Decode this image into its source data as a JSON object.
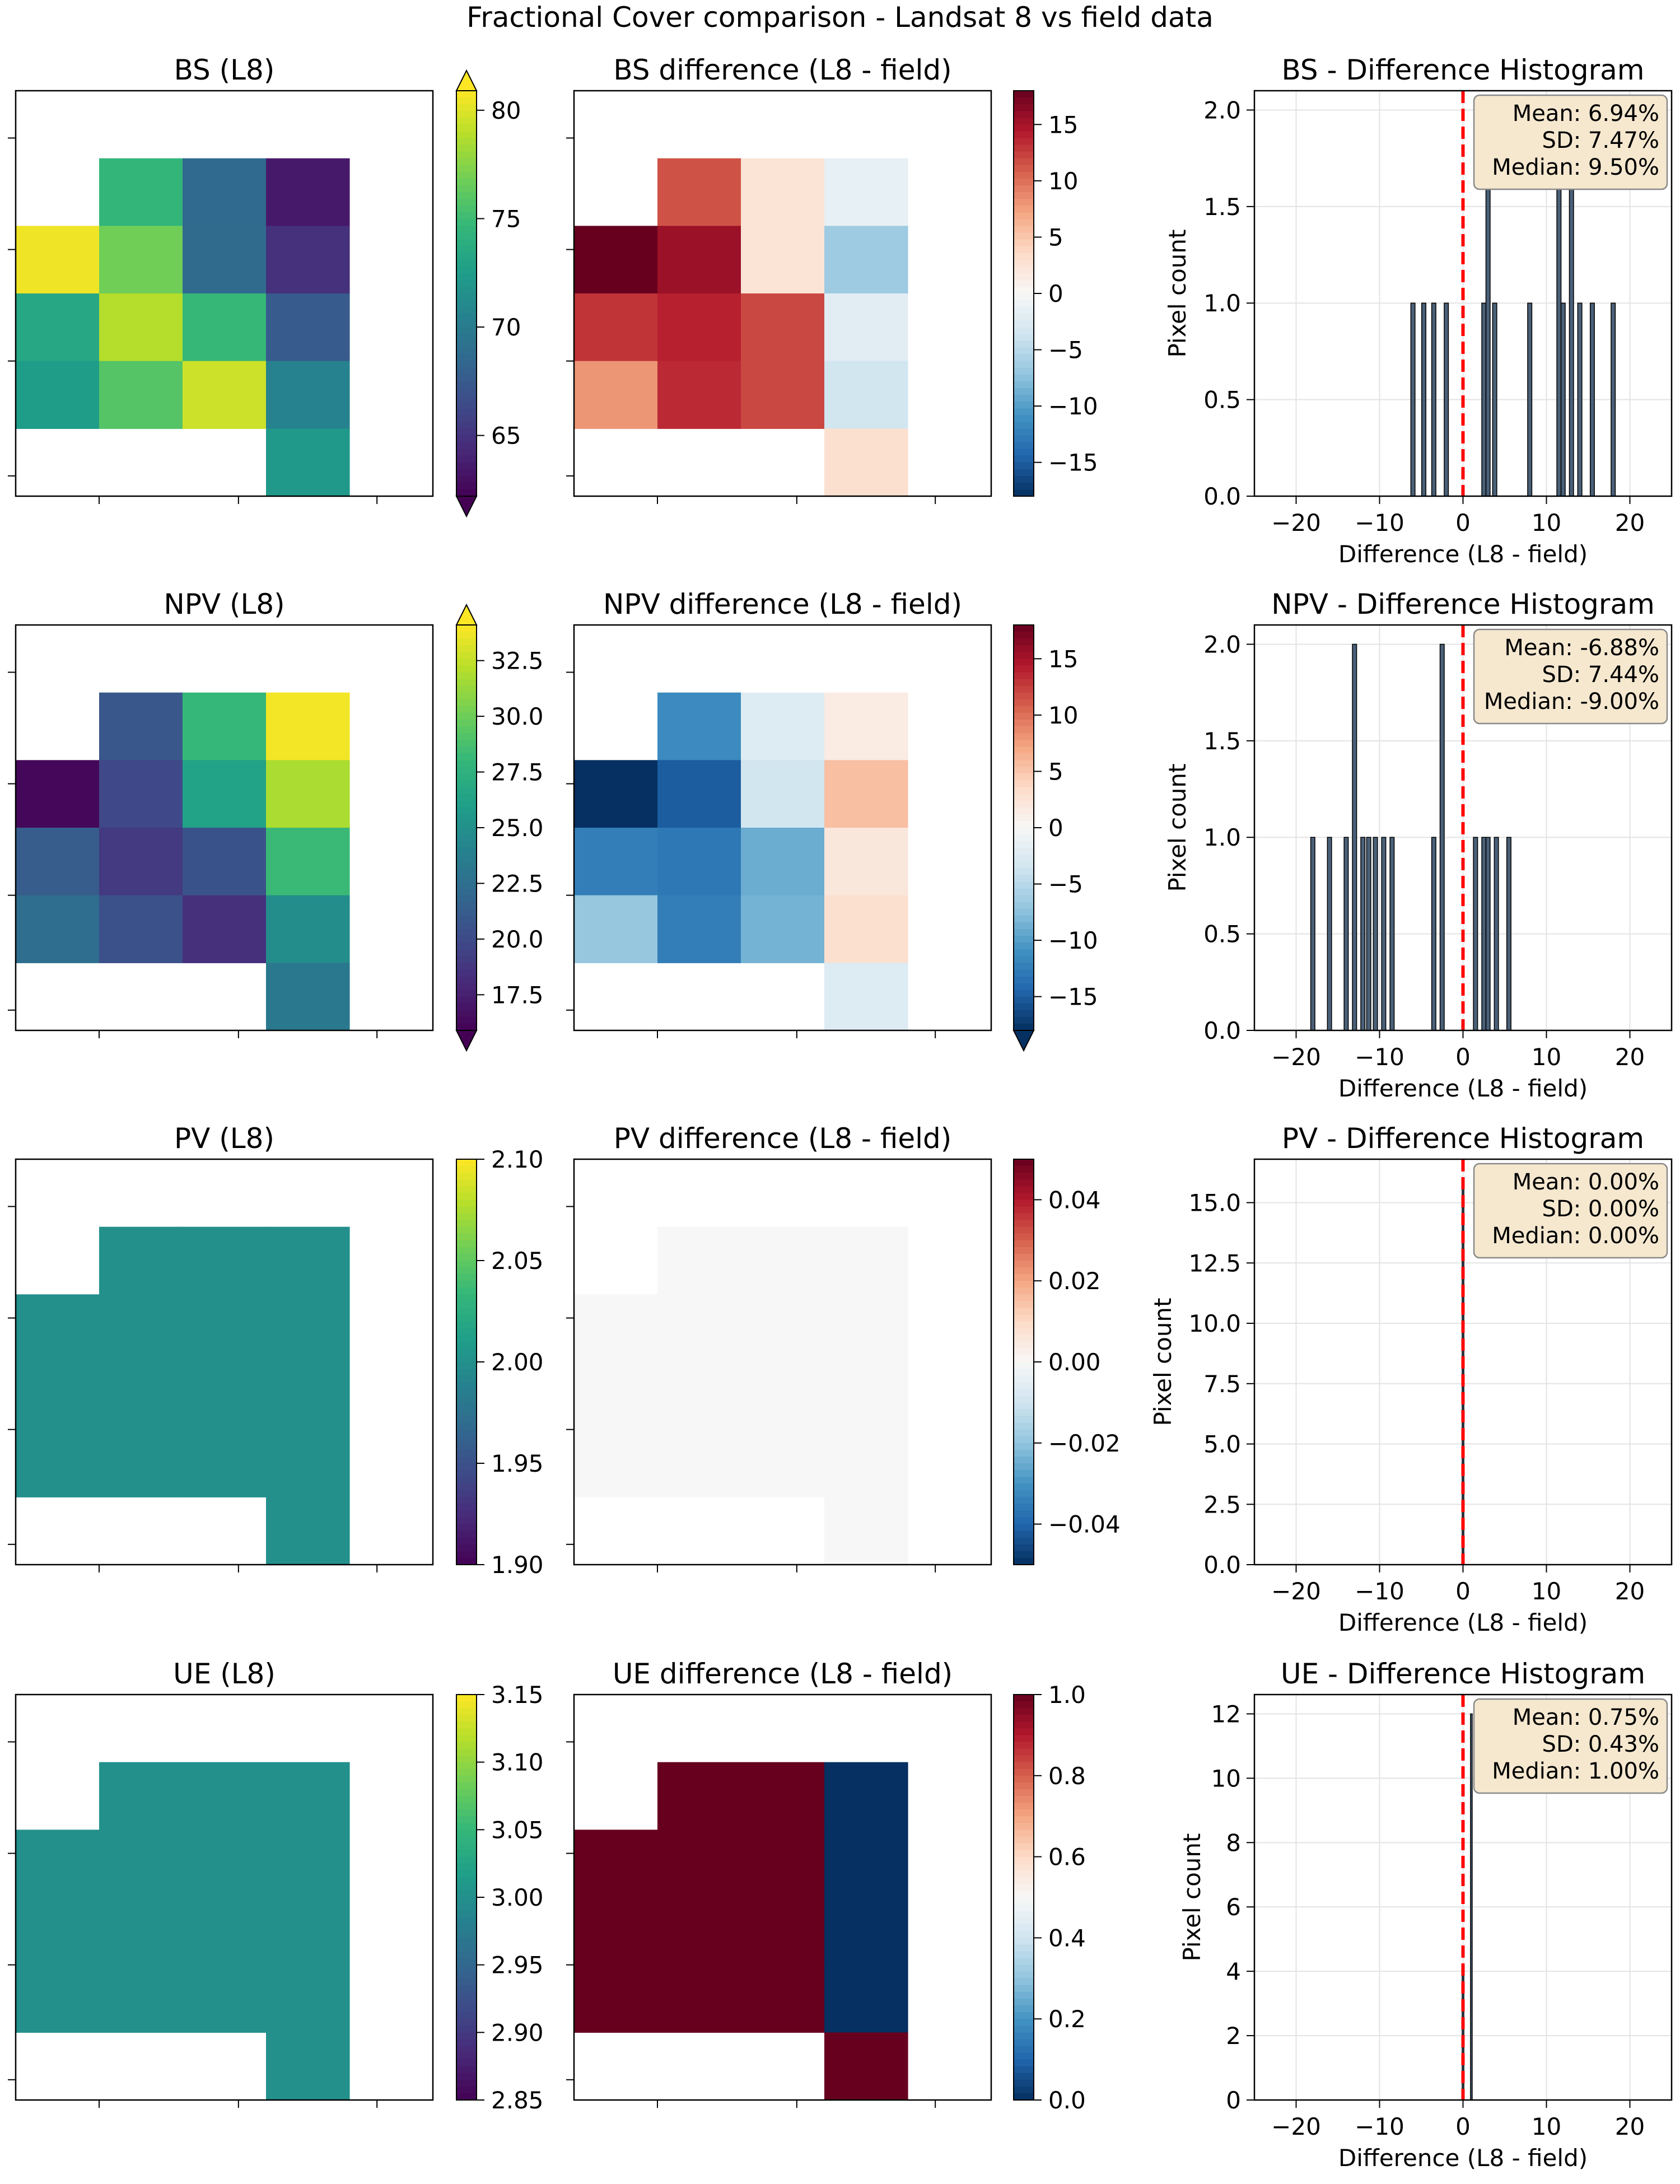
{
  "figure": {
    "title": "Fractional Cover comparison - Landsat 8 vs field data"
  },
  "colors": {
    "hist_bar": "#4a6078",
    "hist_edge": "#000000",
    "mean_line": "#ff0000",
    "stats_box_fill": "#f5e8cf",
    "stats_box_edge": "#8a8a8a",
    "grid": "#e3e3e3"
  },
  "chart_data": [
    {
      "id": "bs-l8",
      "type": "heatmap",
      "title": "BS (L8)",
      "colormap": "viridis",
      "vmin": 62.2,
      "vmax": 80.9,
      "colorbar_extend": "both",
      "colorbar_ticks": [
        "65",
        "70",
        "75",
        "80"
      ],
      "colorbar_tick_values": [
        65,
        70,
        75,
        80
      ],
      "grid_rows": 6,
      "grid_cols": 5,
      "cells": [
        [
          null,
          null,
          null,
          null,
          null
        ],
        [
          null,
          74.5,
          68.6,
          63.5,
          null
        ],
        [
          80.5,
          76.8,
          68.7,
          64.8,
          null
        ],
        [
          73.3,
          78.8,
          74.7,
          67.5,
          null
        ],
        [
          72.5,
          75.8,
          79.5,
          70.5,
          null
        ],
        [
          null,
          null,
          null,
          72.2,
          null
        ]
      ]
    },
    {
      "id": "bs-diff",
      "type": "heatmap",
      "title": "BS difference (L8 - field)",
      "colormap": "RdBu_r",
      "vmin": -18,
      "vmax": 18,
      "colorbar_extend": "none",
      "colorbar_ticks": [
        "15",
        "10",
        "5",
        "0",
        "−5",
        "−10",
        "−15"
      ],
      "colorbar_tick_values": [
        15,
        10,
        5,
        0,
        -5,
        -10,
        -15
      ],
      "grid_rows": 6,
      "grid_cols": 5,
      "cells": [
        [
          null,
          null,
          null,
          null,
          null
        ],
        [
          null,
          11.5,
          2.5,
          -1.5,
          null
        ],
        [
          18.0,
          15.5,
          2.5,
          -6.5,
          null
        ],
        [
          13.0,
          14.0,
          12.0,
          -2.0,
          null
        ],
        [
          8.0,
          13.5,
          12.0,
          -3.5,
          null
        ],
        [
          null,
          null,
          null,
          3.0,
          null
        ]
      ]
    },
    {
      "id": "bs-hist",
      "type": "bar",
      "title": "BS - Difference Histogram",
      "xlabel": "Difference (L8 - field)",
      "ylabel": "Pixel count",
      "xlim": [
        -25,
        25
      ],
      "ylim": [
        0,
        2.1
      ],
      "xticks": [
        "−20",
        "−10",
        "0",
        "10",
        "20"
      ],
      "xtick_values": [
        -20,
        -10,
        0,
        10,
        20
      ],
      "yticks": [
        "0.0",
        "0.5",
        "1.0",
        "1.5",
        "2.0"
      ],
      "ytick_values": [
        0,
        0.5,
        1.0,
        1.5,
        2.0
      ],
      "bar_width": 0.5,
      "bars": [
        {
          "x": -6.0,
          "count": 1
        },
        {
          "x": -4.7,
          "count": 1
        },
        {
          "x": -3.5,
          "count": 1
        },
        {
          "x": -2.0,
          "count": 1
        },
        {
          "x": 2.5,
          "count": 1
        },
        {
          "x": 3.0,
          "count": 2
        },
        {
          "x": 3.8,
          "count": 1
        },
        {
          "x": 8.0,
          "count": 1
        },
        {
          "x": 11.5,
          "count": 2
        },
        {
          "x": 12.0,
          "count": 1
        },
        {
          "x": 13.0,
          "count": 2
        },
        {
          "x": 14.0,
          "count": 1
        },
        {
          "x": 15.5,
          "count": 1
        },
        {
          "x": 18.0,
          "count": 1
        }
      ],
      "ref_line_x": 0,
      "stats": [
        "Mean: 6.94%",
        "SD: 7.47%",
        "Median: 9.50%"
      ]
    },
    {
      "id": "npv-l8",
      "type": "heatmap",
      "title": "NPV (L8)",
      "colormap": "viridis",
      "vmin": 15.9,
      "vmax": 34.1,
      "colorbar_extend": "both",
      "colorbar_ticks": [
        "32.5",
        "30.0",
        "27.5",
        "25.0",
        "22.5",
        "20.0",
        "17.5"
      ],
      "colorbar_tick_values": [
        32.5,
        30.0,
        27.5,
        25.0,
        22.5,
        20.0,
        17.5
      ],
      "grid_rows": 6,
      "grid_cols": 5,
      "cells": [
        [
          null,
          null,
          null,
          null,
          null
        ],
        [
          null,
          20.8,
          28.0,
          33.8,
          null
        ],
        [
          16.2,
          19.8,
          26.3,
          31.8,
          null
        ],
        [
          21.2,
          19.0,
          20.5,
          28.2,
          null
        ],
        [
          22.4,
          20.4,
          18.4,
          24.8,
          null
        ],
        [
          null,
          null,
          null,
          23.2,
          null
        ]
      ]
    },
    {
      "id": "npv-diff",
      "type": "heatmap",
      "title": "NPV difference (L8 - field)",
      "colormap": "RdBu_r",
      "vmin": -18,
      "vmax": 18,
      "colorbar_extend": "min",
      "colorbar_ticks": [
        "15",
        "10",
        "5",
        "0",
        "−5",
        "−10",
        "−15"
      ],
      "colorbar_tick_values": [
        15,
        10,
        5,
        0,
        -5,
        -10,
        -15
      ],
      "grid_rows": 6,
      "grid_cols": 5,
      "cells": [
        [
          null,
          null,
          null,
          null,
          null
        ],
        [
          null,
          -11.5,
          -2.5,
          1.5,
          null
        ],
        [
          -18.0,
          -15.0,
          -3.5,
          5.5,
          null
        ],
        [
          -12.5,
          -13.0,
          -9.0,
          2.0,
          null
        ],
        [
          -7.0,
          -12.5,
          -8.5,
          3.0,
          null
        ],
        [
          null,
          null,
          null,
          -2.5,
          null
        ]
      ]
    },
    {
      "id": "npv-hist",
      "type": "bar",
      "title": "NPV - Difference Histogram",
      "xlabel": "Difference (L8 - field)",
      "ylabel": "Pixel count",
      "xlim": [
        -25,
        25
      ],
      "ylim": [
        0,
        2.1
      ],
      "xticks": [
        "−20",
        "−10",
        "0",
        "10",
        "20"
      ],
      "xtick_values": [
        -20,
        -10,
        0,
        10,
        20
      ],
      "yticks": [
        "0.0",
        "0.5",
        "1.0",
        "1.5",
        "2.0"
      ],
      "ytick_values": [
        0,
        0.5,
        1.0,
        1.5,
        2.0
      ],
      "bar_width": 0.5,
      "bars": [
        {
          "x": -18.0,
          "count": 1
        },
        {
          "x": -16.0,
          "count": 1
        },
        {
          "x": -14.0,
          "count": 1
        },
        {
          "x": -13.0,
          "count": 2
        },
        {
          "x": -12.0,
          "count": 1
        },
        {
          "x": -11.3,
          "count": 1
        },
        {
          "x": -10.5,
          "count": 1
        },
        {
          "x": -9.5,
          "count": 1
        },
        {
          "x": -8.5,
          "count": 1
        },
        {
          "x": -3.5,
          "count": 1
        },
        {
          "x": -2.5,
          "count": 2
        },
        {
          "x": 1.5,
          "count": 1
        },
        {
          "x": 2.5,
          "count": 1
        },
        {
          "x": 3.0,
          "count": 1
        },
        {
          "x": 4.0,
          "count": 1
        },
        {
          "x": 5.5,
          "count": 1
        }
      ],
      "ref_line_x": 0,
      "stats": [
        "Mean: -6.88%",
        "SD: 7.44%",
        "Median: -9.00%"
      ]
    },
    {
      "id": "pv-l8",
      "type": "heatmap",
      "title": "PV (L8)",
      "colormap": "viridis",
      "vmin": 1.9,
      "vmax": 2.1,
      "colorbar_extend": "none",
      "colorbar_ticks": [
        "2.10",
        "2.05",
        "2.00",
        "1.95",
        "1.90"
      ],
      "colorbar_tick_values": [
        2.1,
        2.05,
        2.0,
        1.95,
        1.9
      ],
      "grid_rows": 6,
      "grid_cols": 5,
      "cells": [
        [
          null,
          null,
          null,
          null,
          null
        ],
        [
          null,
          2.0,
          2.0,
          2.0,
          null
        ],
        [
          2.0,
          2.0,
          2.0,
          2.0,
          null
        ],
        [
          2.0,
          2.0,
          2.0,
          2.0,
          null
        ],
        [
          2.0,
          2.0,
          2.0,
          2.0,
          null
        ],
        [
          null,
          null,
          null,
          2.0,
          null
        ]
      ]
    },
    {
      "id": "pv-diff",
      "type": "heatmap",
      "title": "PV difference (L8 - field)",
      "colormap": "RdBu_r",
      "vmin": -0.05,
      "vmax": 0.05,
      "colorbar_extend": "none",
      "colorbar_ticks": [
        "0.04",
        "0.02",
        "0.00",
        "−0.02",
        "−0.04"
      ],
      "colorbar_tick_values": [
        0.04,
        0.02,
        0.0,
        -0.02,
        -0.04
      ],
      "grid_rows": 6,
      "grid_cols": 5,
      "cells": [
        [
          null,
          null,
          null,
          null,
          null
        ],
        [
          null,
          0.0,
          0.0,
          0.0,
          null
        ],
        [
          0.0,
          0.0,
          0.0,
          0.0,
          null
        ],
        [
          0.0,
          0.0,
          0.0,
          0.0,
          null
        ],
        [
          0.0,
          0.0,
          0.0,
          0.0,
          null
        ],
        [
          null,
          null,
          null,
          0.0,
          null
        ]
      ]
    },
    {
      "id": "pv-hist",
      "type": "bar",
      "title": "PV - Difference Histogram",
      "xlabel": "Difference (L8 - field)",
      "ylabel": "Pixel count",
      "xlim": [
        -25,
        25
      ],
      "ylim": [
        0,
        16.8
      ],
      "xticks": [
        "−20",
        "−10",
        "0",
        "10",
        "20"
      ],
      "xtick_values": [
        -20,
        -10,
        0,
        10,
        20
      ],
      "yticks": [
        "0.0",
        "2.5",
        "5.0",
        "7.5",
        "10.0",
        "12.5",
        "15.0"
      ],
      "ytick_values": [
        0,
        2.5,
        5.0,
        7.5,
        10.0,
        12.5,
        15.0
      ],
      "bar_width": 0.2,
      "bars": [
        {
          "x": 0.0,
          "count": 16
        }
      ],
      "ref_line_x": 0,
      "stats": [
        "Mean: 0.00%",
        "SD: 0.00%",
        "Median: 0.00%"
      ]
    },
    {
      "id": "ue-l8",
      "type": "heatmap",
      "title": "UE (L8)",
      "colormap": "viridis",
      "vmin": 2.85,
      "vmax": 3.15,
      "colorbar_extend": "none",
      "colorbar_ticks": [
        "3.15",
        "3.10",
        "3.05",
        "3.00",
        "2.95",
        "2.90",
        "2.85"
      ],
      "colorbar_tick_values": [
        3.15,
        3.1,
        3.05,
        3.0,
        2.95,
        2.9,
        2.85
      ],
      "grid_rows": 6,
      "grid_cols": 5,
      "cells": [
        [
          null,
          null,
          null,
          null,
          null
        ],
        [
          null,
          3.0,
          3.0,
          3.0,
          null
        ],
        [
          3.0,
          3.0,
          3.0,
          3.0,
          null
        ],
        [
          3.0,
          3.0,
          3.0,
          3.0,
          null
        ],
        [
          3.0,
          3.0,
          3.0,
          3.0,
          null
        ],
        [
          null,
          null,
          null,
          3.0,
          null
        ]
      ]
    },
    {
      "id": "ue-diff",
      "type": "heatmap",
      "title": "UE difference (L8 - field)",
      "colormap": "RdBu_r",
      "vmin": 0.0,
      "vmax": 1.0,
      "colorbar_extend": "none",
      "colorbar_ticks": [
        "1.0",
        "0.8",
        "0.6",
        "0.4",
        "0.2",
        "0.0"
      ],
      "colorbar_tick_values": [
        1.0,
        0.8,
        0.6,
        0.4,
        0.2,
        0.0
      ],
      "grid_rows": 6,
      "grid_cols": 5,
      "cells": [
        [
          null,
          null,
          null,
          null,
          null
        ],
        [
          null,
          1.0,
          1.0,
          0.0,
          null
        ],
        [
          1.0,
          1.0,
          1.0,
          0.0,
          null
        ],
        [
          1.0,
          1.0,
          1.0,
          0.0,
          null
        ],
        [
          1.0,
          1.0,
          1.0,
          0.0,
          null
        ],
        [
          null,
          null,
          null,
          1.0,
          null
        ]
      ]
    },
    {
      "id": "ue-hist",
      "type": "bar",
      "title": "UE - Difference Histogram",
      "xlabel": "Difference (L8 - field)",
      "ylabel": "Pixel count",
      "xlim": [
        -25,
        25
      ],
      "ylim": [
        0,
        12.6
      ],
      "xticks": [
        "−20",
        "−10",
        "0",
        "10",
        "20"
      ],
      "xtick_values": [
        -20,
        -10,
        0,
        10,
        20
      ],
      "yticks": [
        "0",
        "2",
        "4",
        "6",
        "8",
        "10",
        "12"
      ],
      "ytick_values": [
        0,
        2,
        4,
        6,
        8,
        10,
        12
      ],
      "bar_width": 0.2,
      "bars": [
        {
          "x": 0.0,
          "count": 4
        },
        {
          "x": 1.0,
          "count": 12
        }
      ],
      "ref_line_x": 0,
      "stats": [
        "Mean: 0.75%",
        "SD: 0.43%",
        "Median: 1.00%"
      ]
    }
  ]
}
